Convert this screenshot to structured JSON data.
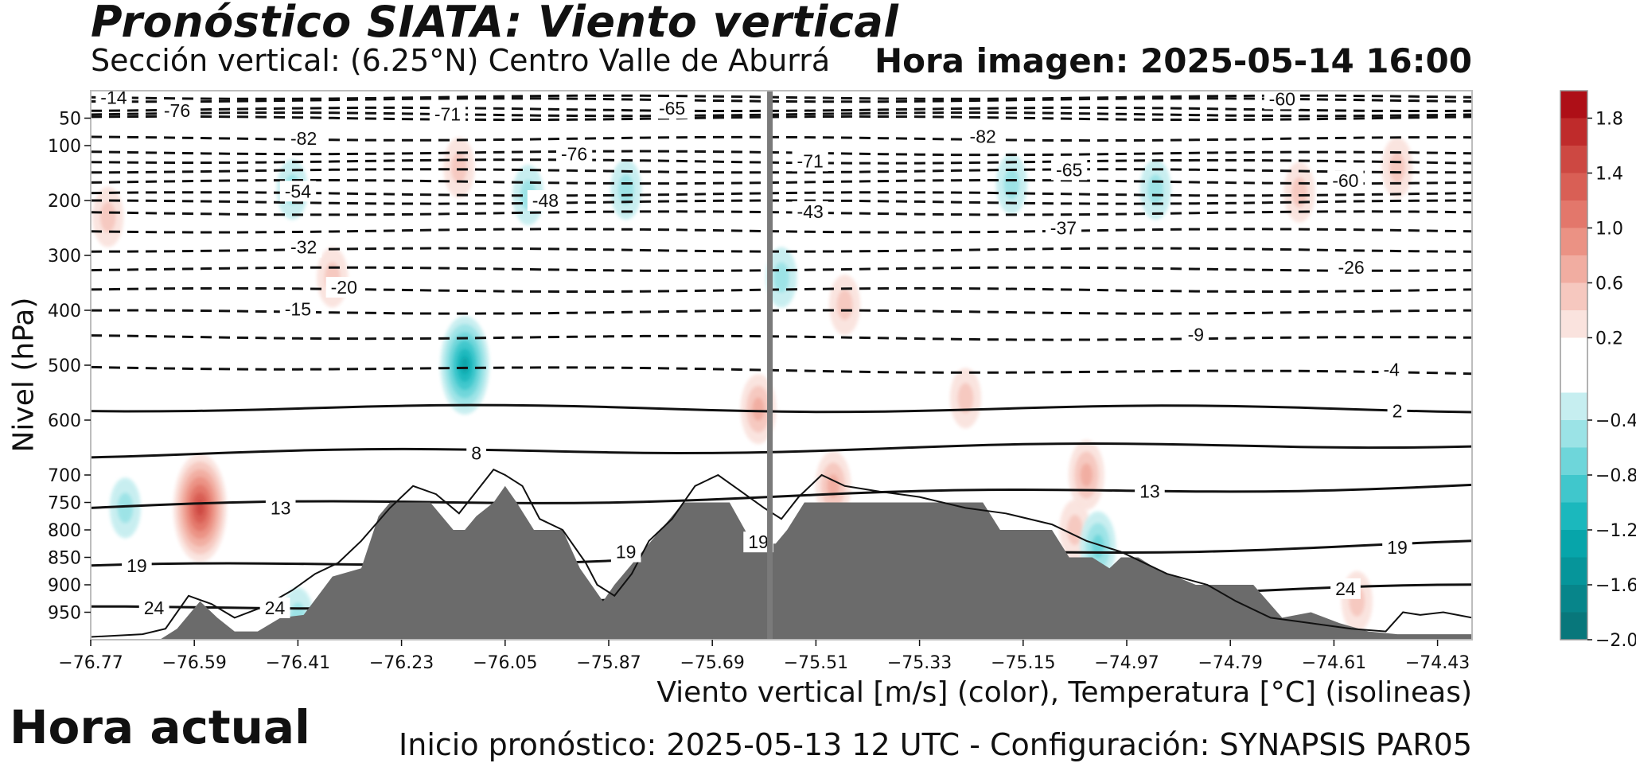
{
  "header": {
    "title": "Pronóstico SIATA: Viento vertical",
    "subtitle": "Sección vertical: (6.25°N) Centro Valle de Aburrá",
    "image_time": "Hora imagen: 2025-05-14 16:00"
  },
  "footer": {
    "current_time_label": "Hora actual",
    "forecast_info": "Inicio pronóstico: 2025-05-13 12 UTC - Configuración: SYNAPSIS PAR05"
  },
  "colors": {
    "terrain": "#6b6b6b",
    "positive": "#e36a5e",
    "negative": "#34c3c7",
    "current_line": "#7a7a7a"
  },
  "chart_data": {
    "type": "heatmap",
    "xlabel": "Viento vertical [m/s] (color), Temperatura [°C] (isolineas)",
    "ylabel": "Nivel (hPa)",
    "x_ticks": [
      -76.77,
      -76.59,
      -76.41,
      -76.23,
      -76.05,
      -75.87,
      -75.69,
      -75.51,
      -75.33,
      -75.15,
      -74.97,
      -74.79,
      -74.61,
      -74.43
    ],
    "x_tick_labels": [
      "−76.77",
      "−76.59",
      "−76.41",
      "−76.23",
      "−76.05",
      "−75.87",
      "−75.69",
      "−75.51",
      "−75.33",
      "−75.15",
      "−74.97",
      "−74.79",
      "−74.61",
      "−74.43"
    ],
    "xlim": [
      -76.77,
      -74.37
    ],
    "y_ticks": [
      50,
      100,
      200,
      300,
      400,
      500,
      600,
      700,
      750,
      800,
      850,
      900,
      950
    ],
    "ylim": [
      1000,
      0
    ],
    "current_longitude": -75.59,
    "colorbar": {
      "ticks": [
        1.8,
        1.4,
        1.0,
        0.6,
        0.2,
        -0.4,
        -0.8,
        -1.2,
        -1.6,
        -2.0
      ],
      "tick_labels": [
        "1.8",
        "1.4",
        "1.0",
        "0.6",
        "0.2",
        "−0.4",
        "−0.8",
        "−1.2",
        "−1.6",
        "−2.0"
      ],
      "bands": [
        {
          "from": 1.8,
          "to": 2.0,
          "color": "#ae0f17"
        },
        {
          "from": 1.6,
          "to": 1.8,
          "color": "#bf2b2b"
        },
        {
          "from": 1.4,
          "to": 1.6,
          "color": "#cd4842"
        },
        {
          "from": 1.2,
          "to": 1.4,
          "color": "#d95f55"
        },
        {
          "from": 1.0,
          "to": 1.2,
          "color": "#e3776b"
        },
        {
          "from": 0.8,
          "to": 1.0,
          "color": "#eb9284"
        },
        {
          "from": 0.6,
          "to": 0.8,
          "color": "#f1ada1"
        },
        {
          "from": 0.4,
          "to": 0.6,
          "color": "#f6c8bf"
        },
        {
          "from": 0.2,
          "to": 0.4,
          "color": "#fae3de"
        },
        {
          "from": -0.2,
          "to": 0.2,
          "color": "#ffffff"
        },
        {
          "from": -0.4,
          "to": -0.2,
          "color": "#c6eef0"
        },
        {
          "from": -0.6,
          "to": -0.4,
          "color": "#9be3e6"
        },
        {
          "from": -0.8,
          "to": -0.6,
          "color": "#6ed6da"
        },
        {
          "from": -1.0,
          "to": -0.8,
          "color": "#40c7cc"
        },
        {
          "from": -1.2,
          "to": -1.0,
          "color": "#1bb8bd"
        },
        {
          "from": -1.4,
          "to": -1.2,
          "color": "#07a5aa"
        },
        {
          "from": -1.6,
          "to": -1.4,
          "color": "#06959a"
        },
        {
          "from": -1.8,
          "to": -1.6,
          "color": "#07858a"
        },
        {
          "from": -2.0,
          "to": -1.8,
          "color": "#08777b"
        }
      ]
    },
    "terrain": {
      "lon": [
        -76.77,
        -76.65,
        -76.62,
        -76.58,
        -76.55,
        -76.52,
        -76.48,
        -76.44,
        -76.4,
        -76.35,
        -76.3,
        -76.27,
        -76.25,
        -76.18,
        -76.14,
        -76.12,
        -76.1,
        -76.07,
        -76.05,
        -76.03,
        -76.0,
        -75.95,
        -75.92,
        -75.88,
        -75.86,
        -75.82,
        -75.78,
        -75.74,
        -75.71,
        -75.66,
        -75.62,
        -75.58,
        -75.56,
        -75.53,
        -75.4,
        -75.3,
        -75.22,
        -75.19,
        -75.15,
        -75.1,
        -75.07,
        -75.03,
        -75.0,
        -74.98,
        -74.95,
        -74.92,
        -74.85,
        -74.8,
        -74.75,
        -74.7,
        -74.65,
        -74.6,
        -74.55,
        -74.5,
        -74.45,
        -74.37
      ],
      "pressure": [
        1000,
        1000,
        980,
        930,
        960,
        985,
        985,
        960,
        955,
        885,
        870,
        775,
        750,
        750,
        800,
        800,
        775,
        750,
        720,
        750,
        800,
        800,
        870,
        930,
        900,
        850,
        800,
        750,
        750,
        750,
        825,
        825,
        800,
        750,
        750,
        750,
        750,
        800,
        800,
        800,
        850,
        850,
        870,
        850,
        850,
        870,
        900,
        900,
        900,
        960,
        950,
        970,
        985,
        990,
        990,
        990
      ]
    },
    "terrain_outline": {
      "lon": [
        -76.77,
        -76.68,
        -76.64,
        -76.6,
        -76.56,
        -76.52,
        -76.47,
        -76.42,
        -76.38,
        -76.34,
        -76.3,
        -76.25,
        -76.21,
        -76.17,
        -76.13,
        -76.1,
        -76.07,
        -76.05,
        -76.02,
        -75.99,
        -75.95,
        -75.91,
        -75.89,
        -75.86,
        -75.83,
        -75.8,
        -75.76,
        -75.72,
        -75.68,
        -75.64,
        -75.6,
        -75.57,
        -75.54,
        -75.5,
        -75.46,
        -75.4,
        -75.33,
        -75.25,
        -75.18,
        -75.1,
        -75.04,
        -74.98,
        -74.9,
        -74.83,
        -74.78,
        -74.72,
        -74.65,
        -74.58,
        -74.52,
        -74.49,
        -74.46,
        -74.42,
        -74.37
      ],
      "pressure": [
        995,
        990,
        980,
        920,
        935,
        960,
        940,
        910,
        880,
        860,
        820,
        760,
        720,
        735,
        770,
        730,
        690,
        700,
        720,
        780,
        800,
        860,
        900,
        920,
        880,
        820,
        780,
        720,
        700,
        730,
        760,
        780,
        740,
        700,
        720,
        730,
        740,
        760,
        770,
        790,
        820,
        840,
        880,
        900,
        930,
        960,
        970,
        980,
        985,
        950,
        955,
        950,
        960
      ]
    },
    "temperature_isolines": [
      {
        "value": -14,
        "levels": [
          12,
          12
        ]
      },
      {
        "value": -60,
        "levels": [
          17,
          17
        ]
      },
      {
        "value": -76,
        "levels": [
          34,
          34
        ]
      },
      {
        "value": -71,
        "levels": [
          43,
          43
        ]
      },
      {
        "value": -65,
        "levels": [
          50,
          50
        ]
      },
      {
        "value": -82,
        "levels": [
          87,
          88
        ]
      },
      {
        "value": -76,
        "levels": [
          112,
          115
        ]
      },
      {
        "value": -71,
        "levels": [
          128,
          130
        ]
      },
      {
        "value": -65,
        "levels": [
          146,
          146
        ]
      },
      {
        "value": -60,
        "levels": [
          166,
          166
        ]
      },
      {
        "value": -54,
        "levels": [
          188,
          188
        ]
      },
      {
        "value": -48,
        "levels": [
          203,
          203
        ]
      },
      {
        "value": -43,
        "levels": [
          223,
          223
        ]
      },
      {
        "value": -37,
        "levels": [
          255,
          255
        ]
      },
      {
        "value": -32,
        "levels": [
          290,
          290
        ]
      },
      {
        "value": -26,
        "levels": [
          325,
          325
        ]
      },
      {
        "value": -20,
        "levels": [
          363,
          363
        ]
      },
      {
        "value": -15,
        "levels": [
          403,
          403
        ]
      },
      {
        "value": -9,
        "levels": [
          448,
          452
        ]
      },
      {
        "value": -4,
        "levels": [
          503,
          515
        ]
      },
      {
        "value": 2,
        "levels": [
          578,
          580
        ]
      },
      {
        "value": 8,
        "levels": [
          663,
          643
        ]
      },
      {
        "value": 13,
        "levels": [
          760,
          718
        ]
      },
      {
        "value": 19,
        "levels": [
          870,
          825
        ]
      },
      {
        "value": 24,
        "levels": [
          945,
          905
        ]
      }
    ],
    "isoline_labels": [
      {
        "text": "-14",
        "lon": -76.73,
        "level": 12
      },
      {
        "text": "-60",
        "lon": -74.7,
        "level": 15
      },
      {
        "text": "-76",
        "lon": -76.62,
        "level": 36
      },
      {
        "text": "-71",
        "lon": -76.15,
        "level": 43
      },
      {
        "text": "-65",
        "lon": -75.76,
        "level": 32
      },
      {
        "text": "-82",
        "lon": -76.4,
        "level": 87
      },
      {
        "text": "-82",
        "lon": -75.22,
        "level": 83
      },
      {
        "text": "-76",
        "lon": -75.93,
        "level": 115
      },
      {
        "text": "-71",
        "lon": -75.52,
        "level": 128
      },
      {
        "text": "-65",
        "lon": -75.07,
        "level": 144
      },
      {
        "text": "-60",
        "lon": -74.59,
        "level": 164
      },
      {
        "text": "-54",
        "lon": -76.41,
        "level": 183
      },
      {
        "text": "-48",
        "lon": -75.98,
        "level": 200
      },
      {
        "text": "-43",
        "lon": -75.52,
        "level": 220
      },
      {
        "text": "-37",
        "lon": -75.08,
        "level": 250
      },
      {
        "text": "-32",
        "lon": -76.4,
        "level": 285
      },
      {
        "text": "-26",
        "lon": -74.58,
        "level": 322
      },
      {
        "text": "-20",
        "lon": -76.33,
        "level": 358
      },
      {
        "text": "-15",
        "lon": -76.41,
        "level": 398
      },
      {
        "text": "-9",
        "lon": -74.85,
        "level": 444
      },
      {
        "text": "-4",
        "lon": -74.51,
        "level": 508
      },
      {
        "text": "2",
        "lon": -74.5,
        "level": 583
      },
      {
        "text": "8",
        "lon": -76.1,
        "level": 660
      },
      {
        "text": "13",
        "lon": -76.44,
        "level": 760
      },
      {
        "text": "13",
        "lon": -74.93,
        "level": 730
      },
      {
        "text": "19",
        "lon": -76.69,
        "level": 865
      },
      {
        "text": "19",
        "lon": -75.84,
        "level": 840
      },
      {
        "text": "19",
        "lon": -75.61,
        "level": 822
      },
      {
        "text": "19",
        "lon": -74.5,
        "level": 832
      },
      {
        "text": "24",
        "lon": -76.66,
        "level": 942
      },
      {
        "text": "24",
        "lon": -76.45,
        "level": 942
      },
      {
        "text": "24",
        "lon": -74.59,
        "level": 907
      }
    ],
    "vertical_velocity_features": [
      {
        "lon": -76.12,
        "level": 500,
        "value": -1.2
      },
      {
        "lon": -76.58,
        "level": 760,
        "value": 1.4
      },
      {
        "lon": -76.71,
        "level": 760,
        "value": -0.4
      },
      {
        "lon": -76.74,
        "level": 230,
        "value": 0.4
      },
      {
        "lon": -76.42,
        "level": 180,
        "value": -0.4
      },
      {
        "lon": -76.01,
        "level": 190,
        "value": -0.4
      },
      {
        "lon": -76.13,
        "level": 140,
        "value": 0.4
      },
      {
        "lon": -75.84,
        "level": 180,
        "value": -0.4
      },
      {
        "lon": -75.61,
        "level": 580,
        "value": 0.6
      },
      {
        "lon": -75.46,
        "level": 390,
        "value": 0.4
      },
      {
        "lon": -75.48,
        "level": 720,
        "value": 0.6
      },
      {
        "lon": -75.57,
        "level": 340,
        "value": -0.4
      },
      {
        "lon": -75.17,
        "level": 170,
        "value": -0.4
      },
      {
        "lon": -74.92,
        "level": 180,
        "value": -0.4
      },
      {
        "lon": -75.04,
        "level": 700,
        "value": 0.6
      },
      {
        "lon": -75.06,
        "level": 800,
        "value": 0.4
      },
      {
        "lon": -75.02,
        "level": 830,
        "value": -0.6
      },
      {
        "lon": -74.67,
        "level": 185,
        "value": 0.4
      },
      {
        "lon": -74.5,
        "level": 140,
        "value": 0.4
      },
      {
        "lon": -74.57,
        "level": 930,
        "value": 0.4
      },
      {
        "lon": -75.25,
        "level": 560,
        "value": 0.4
      },
      {
        "lon": -76.41,
        "level": 960,
        "value": -0.4
      },
      {
        "lon": -76.35,
        "level": 340,
        "value": 0.4
      }
    ]
  }
}
